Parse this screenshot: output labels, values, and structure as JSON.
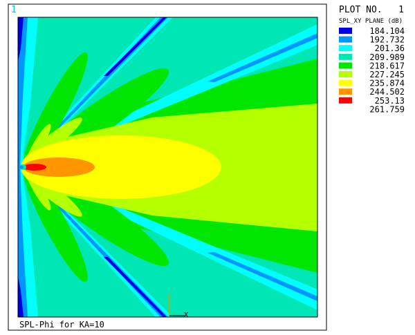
{
  "window_number": "1",
  "plot_label": "PLOT NO.   1",
  "legend_title": "SPL_XY PLANE (dB)",
  "caption": "SPL-Phi for KA=10",
  "triad": {
    "y": "Y",
    "x": "X"
  },
  "colors": {
    "frame": "#000000",
    "window_number": "#00c8c8"
  },
  "chart_data": {
    "type": "contour",
    "title": "SPL-Phi for KA=10",
    "quantity": "SPL_XY PLANE (dB)",
    "levels": [
      184.104,
      192.732,
      201.36,
      209.989,
      218.617,
      227.245,
      235.874,
      244.502,
      253.13,
      261.759
    ],
    "legend_entries": [
      {
        "value": "184.104",
        "color": "#0000e6"
      },
      {
        "value": "192.732",
        "color": "#0096ff"
      },
      {
        "value": "201.36",
        "color": "#00ffff"
      },
      {
        "value": "209.989",
        "color": "#00e6b4"
      },
      {
        "value": "218.617",
        "color": "#00e600"
      },
      {
        "value": "227.245",
        "color": "#b4ff00"
      },
      {
        "value": "235.874",
        "color": "#ffff00"
      },
      {
        "value": "244.502",
        "color": "#ff9600"
      },
      {
        "value": "253.13",
        "color": "#ff0000"
      },
      {
        "value": "261.759",
        "color": ""
      }
    ],
    "field": "sound pressure level radiated from source at left edge; main lobe along +x axis with symmetric side lobes"
  }
}
